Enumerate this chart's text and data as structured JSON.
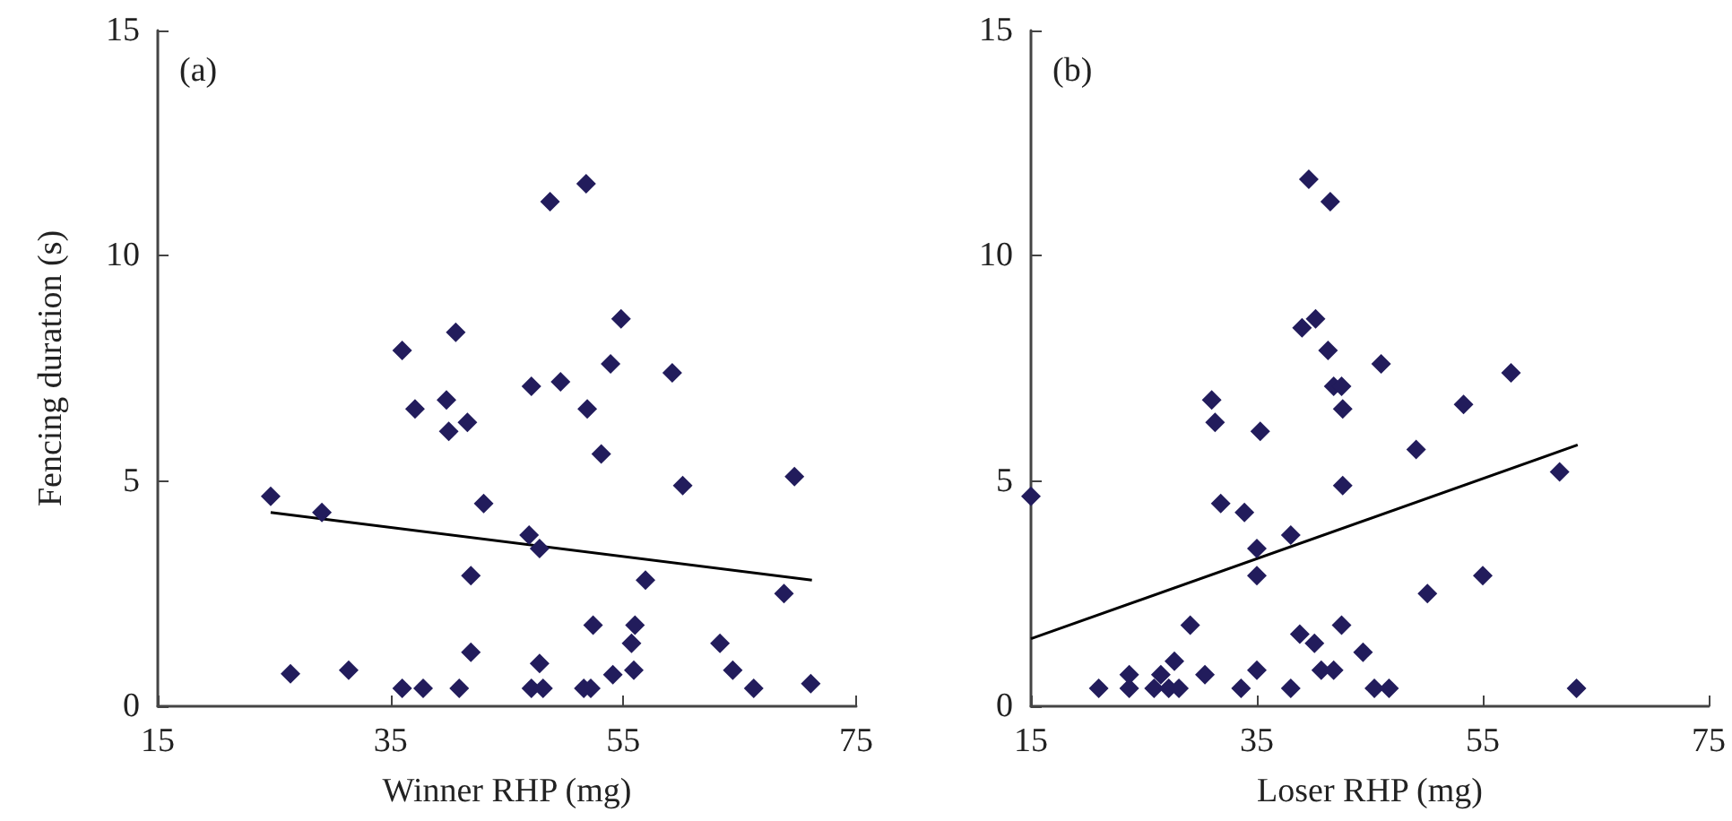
{
  "chart_data": [
    {
      "type": "scatter",
      "xlabel": "Winner RHP (mg)",
      "ylabel": "Fencing duration (s)",
      "annotations": [
        "(a)"
      ],
      "xlim": [
        15,
        75
      ],
      "xticks": [
        15,
        35,
        55,
        75
      ],
      "ylim": [
        0,
        15
      ],
      "yticks": [
        0,
        5,
        10,
        15
      ],
      "grid": false,
      "marker": "diamond",
      "series": [
        {
          "color": "#221c5c",
          "x": [
            24.7,
            26.4,
            29.1,
            31.4,
            36.0,
            36.0,
            37.1,
            37.8,
            39.8,
            40.0,
            40.6,
            40.9,
            41.6,
            41.9,
            41.9,
            43.0,
            46.9,
            47.1,
            47.1,
            47.8,
            47.8,
            48.1,
            48.7,
            49.6,
            51.8,
            51.9,
            52.4,
            51.6,
            52.2,
            53.1,
            53.9,
            54.1,
            54.8,
            55.7,
            56.0,
            55.9,
            56.9,
            59.2,
            60.1,
            63.3,
            64.4,
            66.2,
            68.8,
            69.7,
            71.1
          ],
          "values": [
            4.66,
            0.72,
            4.3,
            0.8,
            7.9,
            0.4,
            6.6,
            0.4,
            6.8,
            6.1,
            8.3,
            0.4,
            6.3,
            2.9,
            1.2,
            4.5,
            3.8,
            7.1,
            0.4,
            3.5,
            0.95,
            0.4,
            11.2,
            7.2,
            11.6,
            6.6,
            1.8,
            0.4,
            0.4,
            5.6,
            7.6,
            0.7,
            8.6,
            1.4,
            1.8,
            0.8,
            2.8,
            7.4,
            4.9,
            1.4,
            0.8,
            0.4,
            2.5,
            5.1,
            0.5
          ]
        },
        {
          "type": "line",
          "color": "#000000",
          "marker": "none",
          "line_style": "solid",
          "x": [
            24.7,
            71.2
          ],
          "values": [
            4.3,
            2.8
          ]
        }
      ]
    },
    {
      "type": "scatter",
      "xlabel": "Loser RHP (mg)",
      "annotations": [
        "(b)"
      ],
      "xlim": [
        15,
        75
      ],
      "xticks": [
        15,
        35,
        55,
        75
      ],
      "ylim": [
        0,
        15
      ],
      "yticks": [
        0,
        5,
        10,
        15
      ],
      "grid": false,
      "marker": "diamond",
      "series": [
        {
          "color": "#221c5c",
          "x": [
            15,
            21.0,
            23.7,
            23.7,
            25.9,
            26.5,
            27.2,
            27.7,
            28.1,
            29.1,
            30.4,
            31.0,
            31.3,
            31.8,
            33.6,
            33.9,
            35.0,
            35.0,
            35.0,
            35.3,
            38.0,
            38.0,
            38.8,
            39.0,
            39.6,
            40.1,
            40.2,
            40.7,
            41.3,
            41.5,
            41.8,
            42.5,
            42.6,
            42.6,
            42.5,
            41.8,
            44.4,
            45.4,
            46.0,
            46.7,
            49.1,
            50.1,
            53.3,
            55.0,
            57.5,
            61.8,
            63.3
          ],
          "values": [
            4.66,
            0.4,
            0.4,
            0.7,
            0.4,
            0.7,
            0.4,
            1.0,
            0.4,
            1.8,
            0.7,
            6.8,
            6.3,
            4.5,
            0.4,
            4.3,
            3.5,
            2.9,
            0.8,
            6.1,
            3.8,
            0.4,
            1.6,
            8.4,
            11.7,
            1.4,
            8.6,
            0.8,
            7.9,
            11.2,
            7.1,
            7.1,
            6.6,
            4.9,
            1.8,
            0.8,
            1.2,
            0.4,
            7.6,
            0.4,
            5.7,
            2.5,
            6.7,
            2.9,
            7.4,
            5.2,
            0.4
          ]
        },
        {
          "type": "line",
          "color": "#000000",
          "marker": "none",
          "line_style": "solid",
          "x": [
            15,
            63.4
          ],
          "values": [
            1.5,
            5.8
          ]
        }
      ]
    }
  ]
}
